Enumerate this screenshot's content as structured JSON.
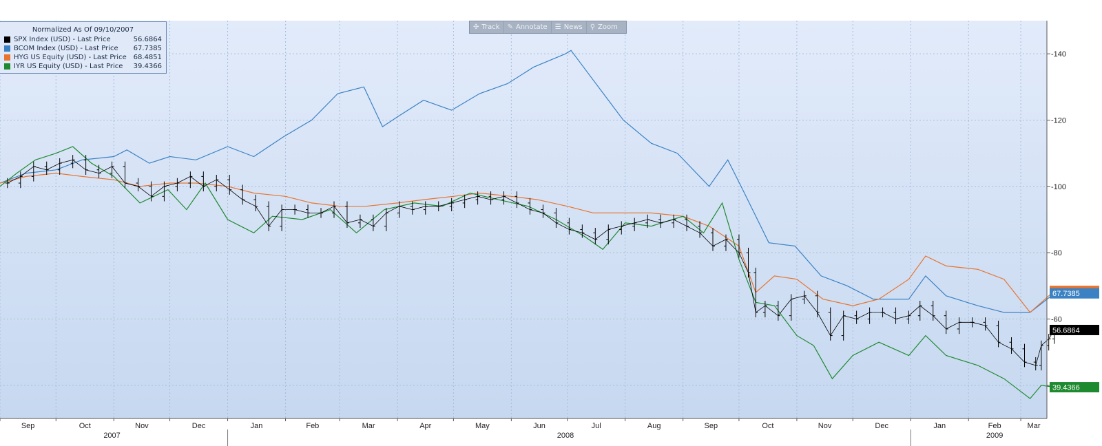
{
  "toolbar": {
    "buttons": [
      {
        "label": "Track",
        "icon": "crosshair-icon"
      },
      {
        "label": "Annotate",
        "icon": "pencil-icon"
      },
      {
        "label": "News",
        "icon": "news-icon"
      },
      {
        "label": "Zoom",
        "icon": "magnifier-icon"
      }
    ]
  },
  "legend": {
    "title": "Normalized As Of 09/10/2007",
    "entries": [
      {
        "label": "SPX Index (USD) - Last Price",
        "value": "56.6864",
        "color": "#000000"
      },
      {
        "label": "BCOM Index (USD) - Last Price",
        "value": "67.7385",
        "color": "#3b82c4"
      },
      {
        "label": "HYG US Equity (USD) - Last Price",
        "value": "68.4851",
        "color": "#e8742e"
      },
      {
        "label": "IYR US Equity (USD) - Last Price",
        "value": "39.4366",
        "color": "#1e8a2f"
      }
    ]
  },
  "chart_data": {
    "type": "line",
    "title": "Normalized As Of 09/10/2007",
    "y_ticks": [
      60,
      80,
      100,
      120,
      140
    ],
    "ylim": [
      30,
      150
    ],
    "x_range": [
      "2007-09-01",
      "2009-03-15"
    ],
    "month_ticks": [
      {
        "date": "2007-09-01",
        "label": "Sep"
      },
      {
        "date": "2007-10-01",
        "label": "Oct"
      },
      {
        "date": "2007-11-01",
        "label": "Nov"
      },
      {
        "date": "2007-12-01",
        "label": "Dec"
      },
      {
        "date": "2008-01-01",
        "label": "Jan"
      },
      {
        "date": "2008-02-01",
        "label": "Feb"
      },
      {
        "date": "2008-03-01",
        "label": "Mar"
      },
      {
        "date": "2008-04-01",
        "label": "Apr"
      },
      {
        "date": "2008-05-01",
        "label": "May"
      },
      {
        "date": "2008-06-01",
        "label": "Jun"
      },
      {
        "date": "2008-07-01",
        "label": "Jul"
      },
      {
        "date": "2008-08-01",
        "label": "Aug"
      },
      {
        "date": "2008-09-01",
        "label": "Sep"
      },
      {
        "date": "2008-10-01",
        "label": "Oct"
      },
      {
        "date": "2008-11-01",
        "label": "Nov"
      },
      {
        "date": "2008-12-01",
        "label": "Dec"
      },
      {
        "date": "2009-01-01",
        "label": "Jan"
      },
      {
        "date": "2009-02-01",
        "label": "Feb"
      },
      {
        "date": "2009-03-01",
        "label": "Mar"
      }
    ],
    "year_labels": [
      {
        "date": "2007-10-31",
        "label": "2007"
      },
      {
        "date": "2008-06-30",
        "label": "2008"
      },
      {
        "date": "2009-02-15",
        "label": "2009"
      }
    ],
    "series": [
      {
        "name": "SPX Index (USD) - Last Price",
        "color": "#000000",
        "style": "ohlc",
        "last_value": 56.6864,
        "points": [
          [
            "2007-09-05",
            101
          ],
          [
            "2007-09-12",
            103
          ],
          [
            "2007-09-19",
            106
          ],
          [
            "2007-09-26",
            105
          ],
          [
            "2007-10-03",
            107
          ],
          [
            "2007-10-10",
            108
          ],
          [
            "2007-10-17",
            105
          ],
          [
            "2007-10-24",
            104
          ],
          [
            "2007-10-31",
            106
          ],
          [
            "2007-11-07",
            101
          ],
          [
            "2007-11-14",
            100
          ],
          [
            "2007-11-21",
            97
          ],
          [
            "2007-11-28",
            100
          ],
          [
            "2007-12-05",
            101
          ],
          [
            "2007-12-12",
            103
          ],
          [
            "2007-12-19",
            100
          ],
          [
            "2007-12-26",
            102
          ],
          [
            "2008-01-02",
            99
          ],
          [
            "2008-01-09",
            96
          ],
          [
            "2008-01-16",
            94
          ],
          [
            "2008-01-23",
            88
          ],
          [
            "2008-01-30",
            93
          ],
          [
            "2008-02-06",
            93
          ],
          [
            "2008-02-13",
            92
          ],
          [
            "2008-02-20",
            92
          ],
          [
            "2008-02-27",
            94
          ],
          [
            "2008-03-05",
            89
          ],
          [
            "2008-03-12",
            90
          ],
          [
            "2008-03-19",
            88
          ],
          [
            "2008-03-26",
            92
          ],
          [
            "2008-04-02",
            94
          ],
          [
            "2008-04-09",
            93
          ],
          [
            "2008-04-16",
            94
          ],
          [
            "2008-04-23",
            94
          ],
          [
            "2008-04-30",
            95
          ],
          [
            "2008-05-07",
            96
          ],
          [
            "2008-05-14",
            97
          ],
          [
            "2008-05-21",
            96
          ],
          [
            "2008-05-28",
            97
          ],
          [
            "2008-06-04",
            95
          ],
          [
            "2008-06-11",
            93
          ],
          [
            "2008-06-18",
            92
          ],
          [
            "2008-06-25",
            89
          ],
          [
            "2008-07-02",
            87
          ],
          [
            "2008-07-09",
            86
          ],
          [
            "2008-07-16",
            84
          ],
          [
            "2008-07-23",
            87
          ],
          [
            "2008-07-30",
            88
          ],
          [
            "2008-08-06",
            89
          ],
          [
            "2008-08-13",
            90
          ],
          [
            "2008-08-20",
            89
          ],
          [
            "2008-08-27",
            90
          ],
          [
            "2008-09-03",
            88
          ],
          [
            "2008-09-10",
            86
          ],
          [
            "2008-09-17",
            82
          ],
          [
            "2008-09-24",
            84
          ],
          [
            "2008-10-01",
            80
          ],
          [
            "2008-10-06",
            74
          ],
          [
            "2008-10-10",
            62
          ],
          [
            "2008-10-15",
            64
          ],
          [
            "2008-10-22",
            61
          ],
          [
            "2008-10-29",
            66
          ],
          [
            "2008-11-05",
            67
          ],
          [
            "2008-11-12",
            62
          ],
          [
            "2008-11-19",
            55
          ],
          [
            "2008-11-26",
            61
          ],
          [
            "2008-12-03",
            60
          ],
          [
            "2008-12-10",
            62
          ],
          [
            "2008-12-17",
            62
          ],
          [
            "2008-12-24",
            60
          ],
          [
            "2008-12-31",
            61
          ],
          [
            "2009-01-06",
            64
          ],
          [
            "2009-01-13",
            61
          ],
          [
            "2009-01-20",
            57
          ],
          [
            "2009-01-27",
            59
          ],
          [
            "2009-02-03",
            59
          ],
          [
            "2009-02-10",
            58
          ],
          [
            "2009-02-17",
            53
          ],
          [
            "2009-02-24",
            51
          ],
          [
            "2009-03-03",
            47
          ],
          [
            "2009-03-09",
            46
          ],
          [
            "2009-03-12",
            52
          ],
          [
            "2009-03-16",
            54
          ],
          [
            "2009-03-19",
            56.7
          ]
        ]
      },
      {
        "name": "BCOM Index (USD) - Last Price",
        "color": "#3b82c4",
        "style": "line",
        "last_value": 67.7385,
        "points": [
          [
            "2007-09-01",
            101
          ],
          [
            "2007-09-15",
            104
          ],
          [
            "2007-10-01",
            105
          ],
          [
            "2007-10-15",
            108
          ],
          [
            "2007-11-01",
            109
          ],
          [
            "2007-11-08",
            111
          ],
          [
            "2007-11-20",
            107
          ],
          [
            "2007-12-01",
            109
          ],
          [
            "2007-12-15",
            108
          ],
          [
            "2008-01-01",
            112
          ],
          [
            "2008-01-15",
            109
          ],
          [
            "2008-01-31",
            115
          ],
          [
            "2008-02-15",
            120
          ],
          [
            "2008-02-29",
            128
          ],
          [
            "2008-03-14",
            130
          ],
          [
            "2008-03-24",
            118
          ],
          [
            "2008-04-01",
            121
          ],
          [
            "2008-04-15",
            126
          ],
          [
            "2008-04-30",
            123
          ],
          [
            "2008-05-15",
            128
          ],
          [
            "2008-05-30",
            131
          ],
          [
            "2008-06-13",
            136
          ],
          [
            "2008-06-30",
            140
          ],
          [
            "2008-07-03",
            141
          ],
          [
            "2008-07-15",
            132
          ],
          [
            "2008-07-31",
            120
          ],
          [
            "2008-08-15",
            113
          ],
          [
            "2008-08-29",
            110
          ],
          [
            "2008-09-15",
            100
          ],
          [
            "2008-09-25",
            108
          ],
          [
            "2008-10-03",
            99
          ],
          [
            "2008-10-17",
            83
          ],
          [
            "2008-10-31",
            82
          ],
          [
            "2008-11-14",
            73
          ],
          [
            "2008-11-28",
            70
          ],
          [
            "2008-12-12",
            66
          ],
          [
            "2008-12-31",
            66
          ],
          [
            "2009-01-09",
            73
          ],
          [
            "2009-01-20",
            67
          ],
          [
            "2009-02-06",
            64
          ],
          [
            "2009-02-20",
            62
          ],
          [
            "2009-03-06",
            62
          ],
          [
            "2009-03-19",
            67.7
          ]
        ]
      },
      {
        "name": "HYG US Equity (USD) - Last Price",
        "color": "#e8742e",
        "style": "line",
        "last_value": 68.4851,
        "points": [
          [
            "2007-09-01",
            101
          ],
          [
            "2007-09-15",
            103
          ],
          [
            "2007-10-01",
            104
          ],
          [
            "2007-10-15",
            103
          ],
          [
            "2007-11-01",
            102
          ],
          [
            "2007-11-15",
            100
          ],
          [
            "2007-12-01",
            101
          ],
          [
            "2007-12-15",
            101
          ],
          [
            "2008-01-01",
            100
          ],
          [
            "2008-01-15",
            98
          ],
          [
            "2008-02-01",
            97
          ],
          [
            "2008-02-15",
            95
          ],
          [
            "2008-03-01",
            94
          ],
          [
            "2008-03-15",
            94
          ],
          [
            "2008-04-01",
            95
          ],
          [
            "2008-04-15",
            96
          ],
          [
            "2008-05-01",
            97
          ],
          [
            "2008-05-15",
            98
          ],
          [
            "2008-06-01",
            97
          ],
          [
            "2008-06-15",
            96
          ],
          [
            "2008-07-01",
            94
          ],
          [
            "2008-07-15",
            92
          ],
          [
            "2008-08-01",
            92
          ],
          [
            "2008-08-15",
            92
          ],
          [
            "2008-09-01",
            91
          ],
          [
            "2008-09-15",
            88
          ],
          [
            "2008-10-01",
            82
          ],
          [
            "2008-10-10",
            68
          ],
          [
            "2008-10-20",
            73
          ],
          [
            "2008-11-01",
            72
          ],
          [
            "2008-11-15",
            66
          ],
          [
            "2008-12-01",
            64
          ],
          [
            "2008-12-15",
            66
          ],
          [
            "2008-12-31",
            72
          ],
          [
            "2009-01-09",
            79
          ],
          [
            "2009-01-20",
            76
          ],
          [
            "2009-02-06",
            75
          ],
          [
            "2009-02-20",
            72
          ],
          [
            "2009-03-06",
            62
          ],
          [
            "2009-03-19",
            68.5
          ]
        ]
      },
      {
        "name": "IYR US Equity (USD) - Last Price",
        "color": "#1e8a2f",
        "style": "line",
        "last_value": 39.4366,
        "points": [
          [
            "2007-09-01",
            100
          ],
          [
            "2007-09-10",
            104
          ],
          [
            "2007-09-20",
            108
          ],
          [
            "2007-10-01",
            110
          ],
          [
            "2007-10-10",
            112
          ],
          [
            "2007-10-20",
            107
          ],
          [
            "2007-11-01",
            103
          ],
          [
            "2007-11-15",
            95
          ],
          [
            "2007-11-30",
            99
          ],
          [
            "2007-12-10",
            93
          ],
          [
            "2007-12-20",
            101
          ],
          [
            "2008-01-01",
            90
          ],
          [
            "2008-01-15",
            86
          ],
          [
            "2008-01-25",
            91
          ],
          [
            "2008-02-10",
            90
          ],
          [
            "2008-02-25",
            93
          ],
          [
            "2008-03-10",
            86
          ],
          [
            "2008-03-25",
            93
          ],
          [
            "2008-04-10",
            95
          ],
          [
            "2008-04-25",
            94
          ],
          [
            "2008-05-10",
            98
          ],
          [
            "2008-05-25",
            96
          ],
          [
            "2008-06-10",
            94
          ],
          [
            "2008-06-25",
            90
          ],
          [
            "2008-07-10",
            85
          ],
          [
            "2008-07-20",
            81
          ],
          [
            "2008-08-01",
            89
          ],
          [
            "2008-08-15",
            88
          ],
          [
            "2008-09-01",
            91
          ],
          [
            "2008-09-12",
            86
          ],
          [
            "2008-09-22",
            95
          ],
          [
            "2008-10-01",
            78
          ],
          [
            "2008-10-10",
            65
          ],
          [
            "2008-10-20",
            64
          ],
          [
            "2008-11-01",
            55
          ],
          [
            "2008-11-10",
            52
          ],
          [
            "2008-11-20",
            42
          ],
          [
            "2008-12-01",
            49
          ],
          [
            "2008-12-15",
            53
          ],
          [
            "2008-12-31",
            49
          ],
          [
            "2009-01-09",
            55
          ],
          [
            "2009-01-20",
            49
          ],
          [
            "2009-02-06",
            46
          ],
          [
            "2009-02-20",
            42
          ],
          [
            "2009-03-06",
            36
          ],
          [
            "2009-03-12",
            40
          ],
          [
            "2009-03-19",
            39.4
          ]
        ]
      }
    ]
  }
}
